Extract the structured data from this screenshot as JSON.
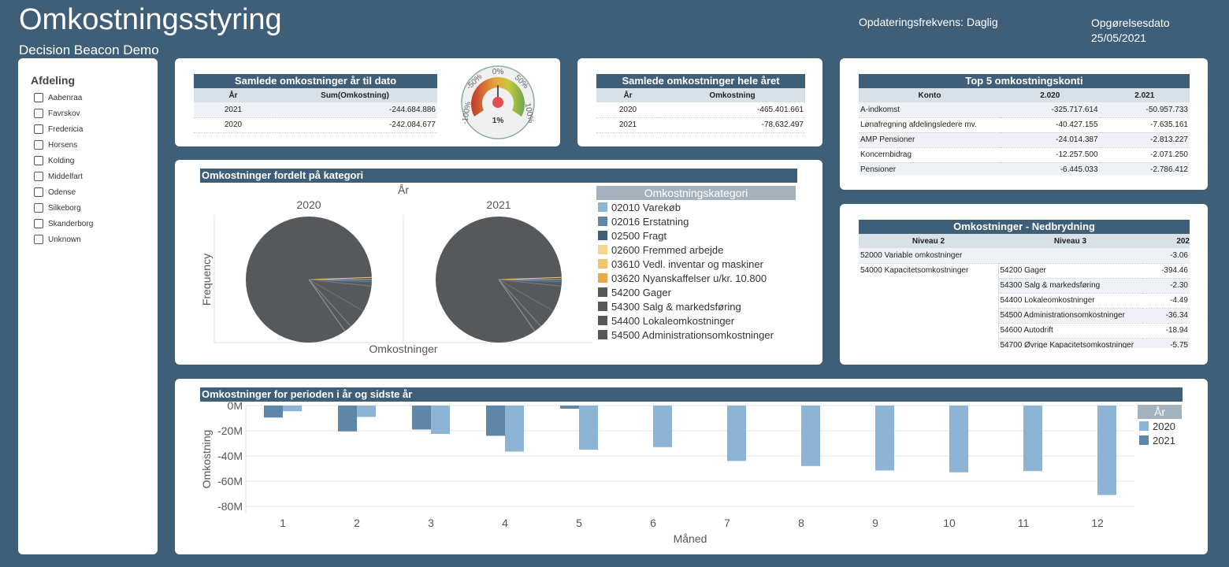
{
  "header": {
    "title": "Omkostningsstyring",
    "subtitle": "Decision Beacon Demo",
    "update_freq": "Opdateringsfrekvens: Daglig",
    "date_label": "Opgørelsesdato",
    "date_value": "25/05/2021"
  },
  "sidebar": {
    "title": "Afdeling",
    "items": [
      {
        "label": "Aabenraa"
      },
      {
        "label": "Favrskov"
      },
      {
        "label": "Fredericia"
      },
      {
        "label": "Horsens"
      },
      {
        "label": "Kolding"
      },
      {
        "label": "Middelfart"
      },
      {
        "label": "Odense"
      },
      {
        "label": "Silkeborg"
      },
      {
        "label": "Skanderborg"
      },
      {
        "label": "Unknown"
      }
    ]
  },
  "ytd": {
    "title": "Samlede omkostninger år til dato",
    "col_year": "År",
    "col_sum": "Sum(Omkostning)",
    "rows": [
      {
        "year": "2021",
        "value": "-244.684.886"
      },
      {
        "year": "2020",
        "value": "-242.084.677"
      }
    ]
  },
  "gauge": {
    "value_label": "1%",
    "value": 1,
    "ticks": [
      "-100%",
      "-50%",
      "0%",
      "50%",
      "100%"
    ]
  },
  "full_year": {
    "title": "Samlede omkostninger hele året",
    "col_year": "År",
    "col_value": "Omkostning",
    "rows": [
      {
        "year": "2020",
        "value": "-465.401.661"
      },
      {
        "year": "2021",
        "value": "-78.632.497"
      }
    ]
  },
  "top5": {
    "title": "Top 5 omkostningskonti",
    "col_konto": "Konto",
    "col_2020": "2.020",
    "col_2021": "2.021",
    "rows": [
      {
        "konto": "A-indkomst",
        "v2020": "-325.717.614",
        "v2021": "-50.957.733"
      },
      {
        "konto": "Lønafregning afdelingsledere mv.",
        "v2020": "-40.427.155",
        "v2021": "-7.635.161"
      },
      {
        "konto": "AMP Pensioner",
        "v2020": "-24.014.387",
        "v2021": "-2.813.227"
      },
      {
        "konto": "Koncernbidrag",
        "v2020": "-12.257.500",
        "v2021": "-2.071.250"
      },
      {
        "konto": "Pensioner",
        "v2020": "-6.445.033",
        "v2021": "-2.786.412"
      }
    ]
  },
  "category": {
    "title": "Omkostninger fordelt på kategori",
    "facet_label": "År",
    "year_a": "2020",
    "year_b": "2021",
    "ylabel": "Frequency",
    "xlabel": "Omkostninger",
    "legend_title": "Omkostningskategori",
    "legend": [
      {
        "label": "02010 Varekøb",
        "color": "#8db4d4"
      },
      {
        "label": "02016 Erstatning",
        "color": "#5e86a6"
      },
      {
        "label": "02500 Fragt",
        "color": "#3f5f78"
      },
      {
        "label": "02600 Fremmed arbejde",
        "color": "#f7d58c"
      },
      {
        "label": "03610 Vedl. inventar og maskiner",
        "color": "#f3c26a"
      },
      {
        "label": "03620 Nyanskaffelser u/kr. 10.800",
        "color": "#eaa84b"
      },
      {
        "label": "54200 Gager",
        "color": "#55595c"
      },
      {
        "label": "54300 Salg & markedsføring",
        "color": "#55595c"
      },
      {
        "label": "54400 Lokaleomkostninger",
        "color": "#55595c"
      },
      {
        "label": "54500 Administrationsomkostninger",
        "color": "#55595c"
      }
    ]
  },
  "breakdown": {
    "title": "Omkostninger - Nedbrydning",
    "col_n2": "Niveau 2",
    "col_n3": "Niveau 3",
    "col_val": "202",
    "rows": [
      {
        "n2": "52000 Variable omkostninger",
        "n3": "",
        "val": "-3.06"
      },
      {
        "n2": "54000 Kapacitetsomkostninger",
        "n3": "54200 Gager",
        "val": "-394.46"
      },
      {
        "n2": "",
        "n3": "54300 Salg & markedsføring",
        "val": "-2.30"
      },
      {
        "n2": "",
        "n3": "54400 Lokaleomkostninger",
        "val": "-4.49"
      },
      {
        "n2": "",
        "n3": "54500 Administrationsomkostninger",
        "val": "-36.34"
      },
      {
        "n2": "",
        "n3": "54600 Autodrift",
        "val": "-18.94"
      },
      {
        "n2": "",
        "n3": "54700 Øvrige Kapacitetsomkostninger",
        "val": "-5.75"
      }
    ]
  },
  "chart_data": {
    "type": "bar",
    "title": "Omkostninger for perioden i år og sidste år",
    "xlabel": "Måned",
    "ylabel": "Omkostning",
    "legend_title": "År",
    "categories": [
      "1",
      "2",
      "3",
      "4",
      "5",
      "6",
      "7",
      "8",
      "9",
      "10",
      "11",
      "12"
    ],
    "ylim": [
      -85,
      0
    ],
    "yticks": [
      0,
      -20,
      -40,
      -60,
      -80
    ],
    "ytick_labels": [
      "0M",
      "-20M",
      "-40M",
      "-60M",
      "-80M"
    ],
    "series": [
      {
        "name": "2021",
        "color": "#5e86a6",
        "values": [
          -9.5,
          -20.5,
          -19,
          -24,
          -2.5,
          null,
          null,
          null,
          null,
          null,
          null,
          null
        ]
      },
      {
        "name": "2020",
        "color": "#8db4d4",
        "values": [
          -4.5,
          -9,
          -22.5,
          -36.5,
          -35,
          -33,
          -44,
          -48,
          -51.5,
          -53,
          -52,
          -71
        ]
      }
    ]
  }
}
